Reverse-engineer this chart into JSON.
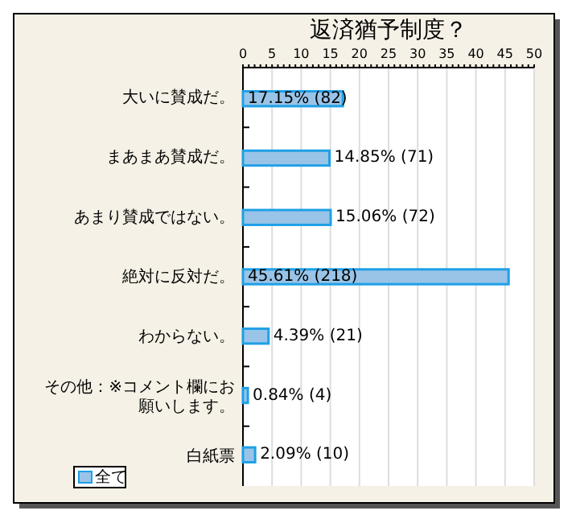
{
  "chart_data": {
    "type": "bar",
    "orientation": "horizontal",
    "title": "返済猶予制度？",
    "categories": [
      "大いに賛成だ。",
      "まあまあ賛成だ。",
      "あまり賛成ではない。",
      "絶対に反対だ。",
      "わからない。",
      "その他：※コメント欄にお願いします。",
      "白紙票"
    ],
    "series": [
      {
        "name": "全て",
        "color": "#99c4e8",
        "values": [
          17.15,
          14.85,
          15.06,
          45.61,
          4.39,
          0.84,
          2.09
        ],
        "value_labels": [
          "17.15% (82)",
          "14.85% (71)",
          "15.06% (72)",
          "45.61% (218)",
          "4.39% (21)",
          "0.84% (4)",
          "2.09% (10)"
        ]
      }
    ],
    "xlim": [
      0,
      50
    ],
    "xticks": [
      0,
      5,
      10,
      15,
      20,
      25,
      30,
      35,
      40,
      45,
      50
    ],
    "grid": "x",
    "legend": "bottom left"
  }
}
